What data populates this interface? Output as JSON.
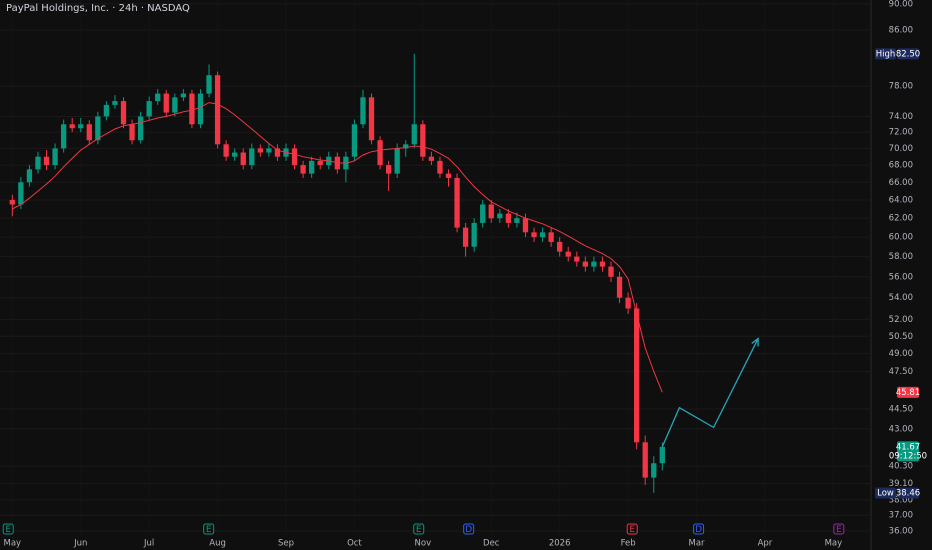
{
  "chart_data": {
    "type": "candlestick",
    "title": "PayPal Holdings, Inc. · 24h · NASDAQ",
    "up_color": "#089981",
    "down_color": "#f23645",
    "log_scale": true,
    "grid": true,
    "x": [
      0,
      0.125,
      0.25,
      0.375,
      0.5,
      0.625,
      0.75,
      0.875,
      1,
      1.125,
      1.25,
      1.375,
      1.5,
      1.625,
      1.75,
      1.875,
      2,
      2.125,
      2.25,
      2.375,
      2.5,
      2.625,
      2.75,
      2.875,
      3,
      3.125,
      3.25,
      3.375,
      3.5,
      3.625,
      3.75,
      3.875,
      4,
      4.125,
      4.25,
      4.375,
      4.5,
      4.625,
      4.75,
      4.875,
      5,
      5.125,
      5.25,
      5.375,
      5.5,
      5.625,
      5.75,
      5.875,
      6,
      6.125,
      6.25,
      6.375,
      6.5,
      6.625,
      6.75,
      6.875,
      7,
      7.125,
      7.25,
      7.375,
      7.5,
      7.625,
      7.75,
      7.875,
      8,
      8.125,
      8.25,
      8.375,
      8.5,
      8.625,
      8.75,
      8.875,
      9,
      9.125,
      9.25,
      9.375,
      9.5
    ],
    "ohlc": [
      [
        64,
        64.6,
        62.2,
        63.5
      ],
      [
        63.5,
        66.6,
        63,
        66
      ],
      [
        66,
        68,
        65.5,
        67.5
      ],
      [
        67.5,
        69.6,
        67,
        69
      ],
      [
        69,
        69.8,
        67.4,
        68
      ],
      [
        68,
        70.6,
        67.5,
        70
      ],
      [
        70,
        73.6,
        69.5,
        73
      ],
      [
        73,
        73.8,
        72,
        72.5
      ],
      [
        72.5,
        73.8,
        72,
        73
      ],
      [
        73,
        73.5,
        70.4,
        71
      ],
      [
        71,
        74.6,
        70.5,
        74
      ],
      [
        74,
        76,
        73.5,
        75.5
      ],
      [
        75.5,
        76.8,
        75,
        76
      ],
      [
        76,
        76.5,
        72.5,
        73
      ],
      [
        73,
        73.6,
        70.5,
        71
      ],
      [
        71,
        74.6,
        70.6,
        74
      ],
      [
        74,
        76.6,
        73.5,
        76
      ],
      [
        76,
        77.6,
        75.5,
        77
      ],
      [
        77,
        77.5,
        74,
        74.5
      ],
      [
        74.5,
        77,
        74,
        76.5
      ],
      [
        76.5,
        77.6,
        76,
        77
      ],
      [
        77,
        77.5,
        72.5,
        73
      ],
      [
        73,
        77.6,
        72.5,
        77
      ],
      [
        77,
        81,
        76.5,
        79.5
      ],
      [
        79.5,
        80,
        70,
        70.5
      ],
      [
        70.5,
        71,
        68.5,
        69
      ],
      [
        69,
        70,
        68.5,
        69.5
      ],
      [
        69.5,
        70,
        67.5,
        68
      ],
      [
        68,
        70.6,
        67.5,
        70
      ],
      [
        70,
        70.5,
        69,
        69.5
      ],
      [
        69.5,
        70.6,
        69,
        70
      ],
      [
        70,
        70.5,
        68.5,
        69
      ],
      [
        69,
        70.6,
        68.5,
        70
      ],
      [
        70,
        70.5,
        67.5,
        68
      ],
      [
        68,
        68.5,
        66.5,
        67
      ],
      [
        67,
        69,
        66.5,
        68.5
      ],
      [
        68.5,
        69,
        67.5,
        68
      ],
      [
        68,
        69.6,
        67.5,
        69
      ],
      [
        69,
        69.5,
        67,
        67.5
      ],
      [
        67.5,
        69.6,
        66,
        69
      ],
      [
        69,
        73.6,
        68.5,
        73
      ],
      [
        73,
        77.5,
        72.5,
        76.5
      ],
      [
        76.5,
        77,
        70.5,
        71
      ],
      [
        71,
        71.5,
        67.5,
        68
      ],
      [
        68,
        68.5,
        65,
        67
      ],
      [
        67,
        70.6,
        66.5,
        70
      ],
      [
        70,
        71,
        69,
        70.5
      ],
      [
        70.5,
        82.5,
        70,
        73
      ],
      [
        73,
        73.5,
        68.5,
        69
      ],
      [
        69,
        69.6,
        68,
        68.5
      ],
      [
        68.5,
        69,
        66.5,
        67
      ],
      [
        67,
        67.5,
        65.5,
        66.5
      ],
      [
        66.5,
        67,
        60.5,
        61
      ],
      [
        61,
        61.5,
        58,
        59
      ],
      [
        59,
        62,
        58.5,
        61.5
      ],
      [
        61.5,
        64,
        61,
        63.5
      ],
      [
        63.5,
        64,
        61.5,
        62
      ],
      [
        62,
        63,
        61.5,
        62.5
      ],
      [
        62.5,
        63,
        61,
        61.5
      ],
      [
        61.5,
        62.6,
        61,
        62
      ],
      [
        62,
        62.5,
        60,
        60.5
      ],
      [
        60.5,
        61,
        59.5,
        60
      ],
      [
        60,
        61,
        59.5,
        60.5
      ],
      [
        60.5,
        61,
        59,
        59.5
      ],
      [
        59.5,
        60,
        58,
        58.5
      ],
      [
        58.5,
        59,
        57.5,
        58
      ],
      [
        58,
        58.5,
        57,
        57.5
      ],
      [
        57.5,
        58,
        56.5,
        57
      ],
      [
        57,
        58,
        56.5,
        57.5
      ],
      [
        57.5,
        58,
        56.5,
        57
      ],
      [
        57,
        57.5,
        55.5,
        56
      ],
      [
        56,
        56.5,
        53.5,
        54
      ],
      [
        54,
        54.5,
        52.5,
        53
      ],
      [
        53,
        53.5,
        41.5,
        42
      ],
      [
        42,
        42.5,
        39,
        39.5
      ],
      [
        39.5,
        41,
        38.46,
        40.5
      ],
      [
        40.5,
        42,
        40,
        41.67
      ]
    ],
    "ma": {
      "color": "#f23645",
      "values": [
        63,
        63.5,
        64.2,
        65,
        65.8,
        66.7,
        67.8,
        68.8,
        69.8,
        70.5,
        71.2,
        71.8,
        72.4,
        72.8,
        73,
        73.2,
        73.5,
        73.8,
        74,
        74.3,
        74.6,
        74.8,
        75.2,
        75.8,
        75.6,
        75,
        74.2,
        73.3,
        72.4,
        71.5,
        70.6,
        69.8,
        69.5,
        69.3,
        69,
        68.8,
        68.6,
        68.5,
        68.3,
        68.2,
        68.5,
        69.2,
        69.6,
        69.8,
        69.9,
        70,
        70.1,
        70.3,
        70.2,
        69.9,
        69.4,
        68.8,
        67.8,
        66.6,
        65.5,
        64.6,
        63.8,
        63.3,
        62.8,
        62.4,
        62,
        61.7,
        61.4,
        61,
        60.6,
        60.1,
        59.6,
        59.1,
        58.7,
        58.3,
        57.8,
        57,
        55.8,
        52.5,
        49.5,
        47.5,
        45.81
      ]
    },
    "projection": {
      "color": "#26a6b8",
      "x": [
        9.5,
        9.75,
        10.25,
        10.9
      ],
      "values": [
        41.67,
        44.6,
        43.1,
        50.3
      ]
    },
    "xlim": [
      -0.18,
      12.55
    ],
    "xticks": [
      {
        "value": 0,
        "label": "May"
      },
      {
        "value": 1,
        "label": "Jun"
      },
      {
        "value": 2,
        "label": "Jul"
      },
      {
        "value": 3,
        "label": "Aug"
      },
      {
        "value": 4,
        "label": "Sep"
      },
      {
        "value": 5,
        "label": "Oct"
      },
      {
        "value": 6,
        "label": "Nov"
      },
      {
        "value": 7,
        "label": "Dec"
      },
      {
        "value": 8,
        "label": "2026"
      },
      {
        "value": 9,
        "label": "Feb"
      },
      {
        "value": 10,
        "label": "Mar"
      },
      {
        "value": 11,
        "label": "Apr"
      },
      {
        "value": 12,
        "label": "May"
      }
    ],
    "ylim": [
      35.75,
      90.6
    ],
    "yticks": [
      {
        "value": 36,
        "label": "36.00"
      },
      {
        "value": 37,
        "label": "37.00"
      },
      {
        "value": 38,
        "label": "38.00"
      },
      {
        "value": 39.1,
        "label": "39.10"
      },
      {
        "value": 40.3,
        "label": "40.30"
      },
      {
        "value": 43,
        "label": "43.00"
      },
      {
        "value": 44.5,
        "label": "44.50"
      },
      {
        "value": 47.5,
        "label": "47.50"
      },
      {
        "value": 49,
        "label": "49.00"
      },
      {
        "value": 50.5,
        "label": "50.50"
      },
      {
        "value": 52,
        "label": "52.00"
      },
      {
        "value": 54,
        "label": "54.00"
      },
      {
        "value": 56,
        "label": "56.00"
      },
      {
        "value": 58,
        "label": "58.00"
      },
      {
        "value": 60,
        "label": "60.00"
      },
      {
        "value": 62,
        "label": "62.00"
      },
      {
        "value": 64,
        "label": "64.00"
      },
      {
        "value": 66,
        "label": "66.00"
      },
      {
        "value": 68,
        "label": "68.00"
      },
      {
        "value": 70,
        "label": "70.00"
      },
      {
        "value": 72,
        "label": "72.00"
      },
      {
        "value": 74,
        "label": "74.00"
      },
      {
        "value": 78,
        "label": "78.00"
      },
      {
        "value": 86,
        "label": "86.00"
      },
      {
        "value": 90,
        "label": "90.00"
      }
    ],
    "badges": [
      {
        "name": "High",
        "value": 82.5,
        "label": "82.50",
        "color": "#1c2a5e"
      },
      {
        "value": 45.81,
        "label": "45.81",
        "color": "#f23645"
      },
      {
        "value": 41.67,
        "label": "41.67",
        "sub": "09:12:50",
        "color": "#089981"
      },
      {
        "name": "Low",
        "value": 38.46,
        "label": "38.46",
        "color": "#1c2a5e"
      }
    ],
    "events": [
      {
        "x": -0.06,
        "label": "E",
        "color": "#089981"
      },
      {
        "x": 2.87,
        "label": "E",
        "color": "#089981"
      },
      {
        "x": 5.94,
        "label": "E",
        "color": "#089981"
      },
      {
        "x": 6.67,
        "label": "D",
        "color": "#2962ff"
      },
      {
        "x": 9.06,
        "label": "E",
        "color": "#f23645"
      },
      {
        "x": 10.03,
        "label": "D",
        "color": "#2962ff"
      },
      {
        "x": 12.08,
        "label": "E",
        "color": "#9c27b0"
      }
    ]
  }
}
